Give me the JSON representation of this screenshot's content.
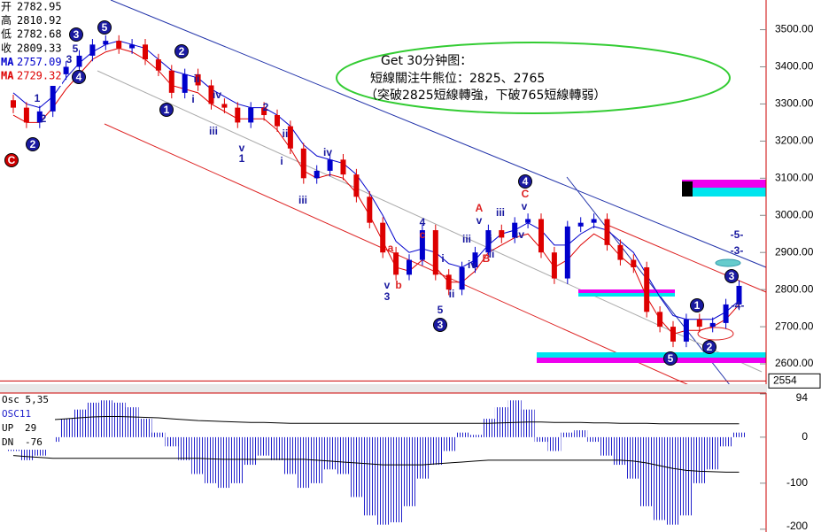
{
  "chart_data": {
    "type": "candlestick",
    "candles": {
      "open": [
        3310,
        3290,
        3250,
        3280,
        3380,
        3400,
        3430,
        3460,
        3470,
        3450,
        3460,
        3420,
        3390,
        3330,
        3380,
        3350,
        3300,
        3290,
        3250,
        3290,
        3270,
        3240,
        3180,
        3100,
        3120,
        3150,
        3110,
        3050,
        2980,
        2900,
        2840,
        2880,
        2960,
        2840,
        2800,
        2860,
        2900,
        2960,
        2940,
        2980,
        2990,
        2900,
        2830,
        2970,
        2980,
        2990,
        2920,
        2880,
        2860,
        2740,
        2700,
        2660,
        2720,
        2700,
        2710,
        2760
      ],
      "high": [
        3325,
        3305,
        3295,
        3395,
        3415,
        3445,
        3475,
        3485,
        3485,
        3475,
        3475,
        3435,
        3405,
        3395,
        3395,
        3365,
        3315,
        3305,
        3305,
        3305,
        3285,
        3255,
        3195,
        3135,
        3165,
        3165,
        3125,
        3065,
        2995,
        2915,
        2895,
        2975,
        2975,
        2855,
        2875,
        2915,
        2975,
        2975,
        2995,
        3005,
        3005,
        2915,
        2985,
        2995,
        3005,
        3005,
        2935,
        2895,
        2875,
        2755,
        2715,
        2735,
        2735,
        2725,
        2775,
        2825
      ],
      "low": [
        3275,
        3235,
        3235,
        3265,
        3365,
        3385,
        3415,
        3445,
        3435,
        3435,
        3405,
        3375,
        3315,
        3315,
        3335,
        3285,
        3275,
        3235,
        3235,
        3255,
        3225,
        3165,
        3085,
        3085,
        3105,
        3095,
        3035,
        2965,
        2885,
        2825,
        2825,
        2865,
        2825,
        2785,
        2785,
        2845,
        2885,
        2925,
        2925,
        2965,
        2885,
        2815,
        2815,
        2955,
        2965,
        2905,
        2865,
        2845,
        2725,
        2685,
        2645,
        2645,
        2685,
        2685,
        2695,
        2745
      ],
      "close": [
        3290,
        3250,
        3280,
        3380,
        3400,
        3430,
        3460,
        3470,
        3450,
        3460,
        3420,
        3390,
        3330,
        3380,
        3350,
        3300,
        3290,
        3250,
        3290,
        3270,
        3240,
        3180,
        3100,
        3120,
        3150,
        3110,
        3050,
        2980,
        2900,
        2840,
        2880,
        2960,
        2840,
        2800,
        2860,
        2900,
        2960,
        2940,
        2980,
        2990,
        2900,
        2830,
        2970,
        2980,
        2990,
        2920,
        2880,
        2860,
        2740,
        2700,
        2660,
        2720,
        2700,
        2710,
        2760,
        2810
      ]
    },
    "up_color": "#0000cc",
    "down_color": "#dd0000",
    "series": [
      {
        "name": "MA",
        "color": "#0000cc",
        "values": [
          3330,
          3300,
          3290,
          3320,
          3370,
          3410,
          3440,
          3460,
          3470,
          3460,
          3450,
          3420,
          3390,
          3380,
          3370,
          3340,
          3320,
          3300,
          3290,
          3290,
          3270,
          3240,
          3190,
          3160,
          3150,
          3140,
          3110,
          3060,
          3000,
          2930,
          2900,
          2910,
          2900,
          2870,
          2860,
          2880,
          2920,
          2950,
          2960,
          2980,
          2960,
          2920,
          2920,
          2950,
          2970,
          2960,
          2930,
          2900,
          2840,
          2780,
          2730,
          2720,
          2720,
          2720,
          2740,
          2770
        ]
      },
      {
        "name": "MA",
        "color": "#dd0000",
        "values": [
          3270,
          3250,
          3250,
          3290,
          3340,
          3380,
          3420,
          3440,
          3450,
          3440,
          3420,
          3390,
          3350,
          3340,
          3330,
          3300,
          3280,
          3260,
          3260,
          3260,
          3230,
          3180,
          3120,
          3100,
          3110,
          3100,
          3060,
          3000,
          2930,
          2860,
          2850,
          2880,
          2860,
          2820,
          2820,
          2850,
          2900,
          2920,
          2940,
          2950,
          2910,
          2860,
          2880,
          2920,
          2950,
          2930,
          2890,
          2860,
          2780,
          2720,
          2680,
          2690,
          2690,
          2700,
          2720,
          2760
        ]
      }
    ],
    "ylim": [
      2550,
      3580
    ],
    "yticks": [
      {
        "value": 3500,
        "label": "3500.00"
      },
      {
        "value": 3400,
        "label": "3400.00"
      },
      {
        "value": 3300,
        "label": "3300.00"
      },
      {
        "value": 3200,
        "label": "3200.00"
      },
      {
        "value": 3100,
        "label": "3100.00"
      },
      {
        "value": 3000,
        "label": "3000.00"
      },
      {
        "value": 2900,
        "label": "2900.00"
      },
      {
        "value": 2800,
        "label": "2800.00"
      },
      {
        "value": 2700,
        "label": "2700.00"
      },
      {
        "value": 2600,
        "label": "2600.00"
      }
    ],
    "cursor": 2554,
    "annotation": [
      "Get 30分钟图：",
      "短線關注牛熊位：2825、2765",
      "（突破2825短線轉強，下破765短線轉弱）"
    ],
    "circled_labels": [
      "3",
      "5",
      "4",
      "2",
      "1",
      "2",
      "3",
      "4",
      "1",
      "2",
      "5",
      "3",
      "C"
    ],
    "wave_labels": [
      "5",
      "3",
      "1",
      "2",
      "ii",
      "i",
      "iv",
      "iii",
      "v",
      "1",
      "2",
      "ii",
      "i",
      "iv",
      "iii",
      "4",
      "c",
      "a",
      "v",
      "b",
      "3",
      "i",
      "ii",
      "5",
      "iii",
      "iv",
      "v",
      "A",
      "B",
      "i",
      "ii",
      "iii",
      "iv",
      "v",
      "C",
      "-5-",
      "-3-",
      "-4-"
    ],
    "info_panel": [
      {
        "label": "开",
        "value": 2782.95
      },
      {
        "label": "高",
        "value": 2810.92
      },
      {
        "label": "低",
        "value": 2782.68
      },
      {
        "label": "收",
        "value": 2809.33
      },
      {
        "value": 2757.09
      },
      {
        "value": 2729.32
      }
    ],
    "oscillator": {
      "title": "Osc 5,35",
      "name": "OSC11",
      "color": "#2222cc",
      "values": [
        -30,
        -50,
        -40,
        -10,
        40,
        60,
        75,
        80,
        75,
        65,
        40,
        10,
        -20,
        -50,
        -80,
        -100,
        -110,
        -100,
        -60,
        -40,
        -50,
        -80,
        -110,
        -100,
        -70,
        -80,
        -130,
        -170,
        -190,
        -185,
        -150,
        -90,
        -60,
        -30,
        10,
        5,
        40,
        65,
        80,
        60,
        -10,
        -30,
        10,
        15,
        -10,
        -40,
        -60,
        -90,
        -150,
        -180,
        -190,
        -170,
        -100,
        -70,
        -20,
        10
      ],
      "ylim": [
        -206,
        94
      ],
      "yticks": [
        94,
        0,
        -100,
        -200
      ],
      "bands": [
        {
          "name": "UP",
          "value": 29,
          "values": [
            40,
            40,
            38,
            38,
            40,
            42,
            44,
            45,
            45,
            44,
            43,
            42,
            40,
            38,
            36,
            35,
            34,
            33,
            32,
            32,
            31,
            30,
            30,
            30,
            30,
            30,
            30,
            30,
            30,
            30,
            30,
            30,
            30,
            30,
            30,
            30,
            30,
            31,
            32,
            33,
            33,
            32,
            32,
            32,
            31,
            31,
            30,
            30,
            30,
            29,
            29,
            29,
            29,
            29,
            29,
            29
          ]
        },
        {
          "name": "DN",
          "value": -76,
          "values": [
            -40,
            -42,
            -44,
            -46,
            -46,
            -46,
            -46,
            -46,
            -46,
            -46,
            -46,
            -46,
            -46,
            -46,
            -46,
            -47,
            -48,
            -48,
            -48,
            -48,
            -48,
            -48,
            -48,
            -50,
            -52,
            -54,
            -56,
            -58,
            -60,
            -60,
            -60,
            -60,
            -58,
            -56,
            -54,
            -52,
            -50,
            -50,
            -50,
            -50,
            -50,
            -50,
            -50,
            -50,
            -50,
            -50,
            -50,
            -52,
            -56,
            -62,
            -68,
            -72,
            -74,
            -75,
            -76,
            -76
          ]
        }
      ]
    }
  }
}
